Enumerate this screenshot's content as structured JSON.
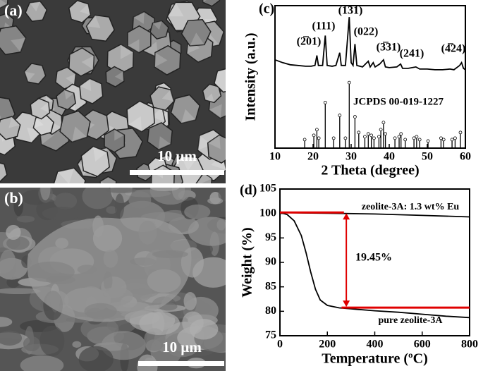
{
  "images": [
    {
      "label": "(a)",
      "scale": "10 μm"
    },
    {
      "label": "(b)",
      "scale": "10 μm"
    }
  ],
  "chart_data": [
    {
      "type": "xrd",
      "label": "(c)",
      "xlabel": "2 Theta (degree)",
      "ylabel": "Intensity (a.u.)",
      "xlim": [
        10,
        60
      ],
      "xticks": [
        10,
        20,
        30,
        40,
        50,
        60
      ],
      "ylim": [
        0,
        100
      ],
      "annotations": [
        "(2̅01)",
        "(111)",
        "(131)",
        "(022)",
        "(3̅31)",
        "(241)",
        "(4̅24)",
        "JCPDS 00-019-1227"
      ],
      "series": [
        {
          "color": "#000000",
          "x": [
            10,
            12,
            14,
            16,
            18,
            19.5,
            20.5,
            21,
            21.4,
            22.5,
            23.2,
            23.7,
            25,
            26,
            27,
            27.4,
            28.5,
            29.5,
            30,
            30.5,
            31,
            31.5,
            33,
            34.5,
            35,
            35.8,
            36.3,
            37.5,
            38.5,
            39,
            40,
            42,
            43,
            43.5,
            45,
            47,
            48,
            50,
            52,
            54,
            56,
            57,
            58.5,
            59,
            59.5,
            60
          ],
          "values": [
            62,
            60,
            58.5,
            58,
            57.5,
            57.5,
            58,
            65,
            58,
            58,
            79,
            58,
            57.5,
            58,
            67,
            58,
            58,
            92,
            60,
            58,
            73,
            58,
            57,
            61,
            57,
            60,
            57,
            59,
            62,
            57,
            56.5,
            57,
            59,
            56,
            56,
            57,
            55.5,
            55.5,
            55,
            55,
            55.5,
            55,
            58,
            60,
            56,
            55
          ]
        }
      ],
      "reference": {
        "color": "#000000",
        "x": [
          17.8,
          20.2,
          21,
          21.5,
          23.2,
          25.4,
          27,
          28.5,
          29.5,
          31,
          32,
          33.6,
          34.5,
          35.3,
          36,
          37.3,
          37.8,
          38.5,
          39,
          41.5,
          42.6,
          43.1,
          44.2,
          46.5,
          47.2,
          48,
          50.2,
          53.6,
          54.3,
          56.5,
          57.3,
          58.7
        ],
        "values": [
          5,
          8,
          12,
          6,
          31,
          6,
          22,
          6,
          45,
          21,
          10,
          7,
          9,
          8,
          6,
          7,
          12,
          17,
          9,
          6,
          7,
          9,
          5,
          6,
          7,
          5,
          4,
          6,
          5,
          5,
          6,
          10
        ]
      }
    },
    {
      "type": "line",
      "label": "(d)",
      "xlabel": "Temperature (ºC)",
      "ylabel": "Weight (%)",
      "xlim": [
        0,
        800
      ],
      "xticks": [
        0,
        200,
        400,
        600,
        800
      ],
      "ylim": [
        75,
        105
      ],
      "yticks": [
        75,
        80,
        85,
        90,
        95,
        100,
        105
      ],
      "annotations": [
        "19.45%"
      ],
      "guide_lines": {
        "color": "#e00000",
        "levels": [
          100.2,
          80.75
        ]
      },
      "series": [
        {
          "name": "zeolite-3A: 1.3 wt% Eu",
          "color": "#000000",
          "x": [
            0,
            100,
            200,
            400,
            600,
            800
          ],
          "values": [
            100.2,
            100.1,
            100.05,
            99.9,
            99.6,
            99.3
          ]
        },
        {
          "name": "pure zeolite-3A",
          "color": "#000000",
          "x": [
            0,
            30,
            60,
            90,
            110,
            130,
            150,
            170,
            200,
            250,
            300,
            400,
            500,
            600,
            700,
            800
          ],
          "values": [
            100.2,
            99.8,
            98.5,
            95.5,
            92,
            88,
            84.5,
            82.3,
            81.2,
            80.7,
            80.5,
            80.1,
            79.8,
            79.4,
            79,
            78.7
          ]
        }
      ]
    }
  ]
}
